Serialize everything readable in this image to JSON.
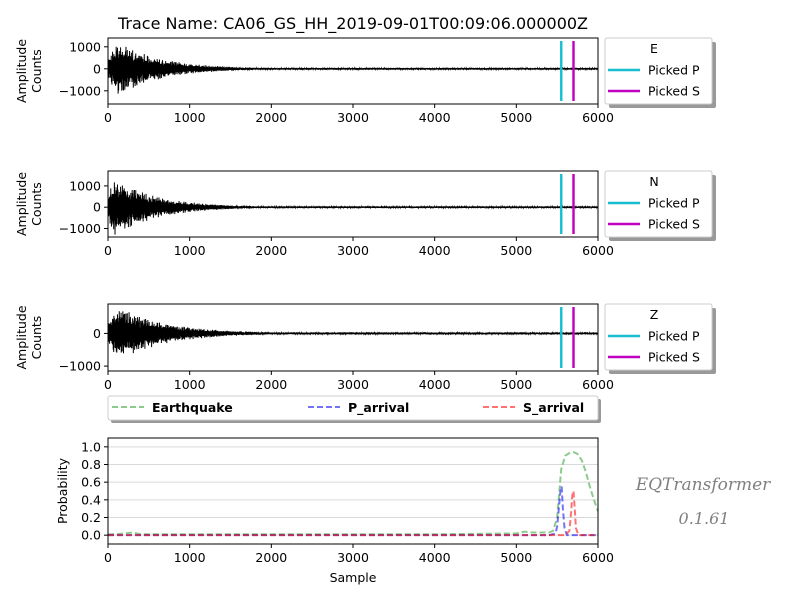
{
  "chart_data": [
    {
      "type": "line",
      "title": "Trace Name: CA06_GS_HH_2019-09-01T00:09:06.000000Z",
      "ylabel": [
        "Amplitude",
        "Counts"
      ],
      "xlim": [
        0,
        6000
      ],
      "ylim": [
        -1600,
        1400
      ],
      "xticks": [
        0,
        1000,
        2000,
        3000,
        4000,
        5000,
        6000
      ],
      "xtick_labels": [
        "0",
        "1000",
        "2000",
        "3000",
        "4000",
        "5000",
        "6000"
      ],
      "yticks": [
        -1000,
        0,
        1000
      ],
      "ytick_labels": [
        "−1000",
        "0",
        "1000"
      ],
      "legend_placement": "outside right",
      "legend_title": "E",
      "series": [
        {
          "name": "waveform",
          "color": "#000000",
          "peak": 1250,
          "peak_at": 120,
          "decay_per_sample": 0.0019,
          "floor": 45
        },
        {
          "name": "Picked P",
          "color": "#17becf",
          "x": 5550
        },
        {
          "name": "Picked S",
          "color": "#bf00bf",
          "x": 5700
        }
      ]
    },
    {
      "type": "line",
      "ylabel": [
        "Amplitude",
        "Counts"
      ],
      "xlim": [
        0,
        6000
      ],
      "ylim": [
        -1400,
        1700
      ],
      "xticks": [
        0,
        1000,
        2000,
        3000,
        4000,
        5000,
        6000
      ],
      "xtick_labels": [
        "0",
        "1000",
        "2000",
        "3000",
        "4000",
        "5000",
        "6000"
      ],
      "yticks": [
        -1000,
        0,
        1000
      ],
      "ytick_labels": [
        "−1000",
        "0",
        "1000"
      ],
      "legend_placement": "outside right",
      "legend_title": "N",
      "series": [
        {
          "name": "waveform",
          "color": "#000000",
          "peak": 1400,
          "peak_at": 70,
          "decay_per_sample": 0.0019,
          "floor": 45
        },
        {
          "name": "Picked P",
          "color": "#17becf",
          "x": 5550
        },
        {
          "name": "Picked S",
          "color": "#bf00bf",
          "x": 5700
        }
      ]
    },
    {
      "type": "line",
      "ylabel": [
        "Amplitude",
        "Counts"
      ],
      "xlim": [
        0,
        6000
      ],
      "ylim": [
        -1150,
        900
      ],
      "xticks": [
        0,
        1000,
        2000,
        3000,
        4000,
        5000,
        6000
      ],
      "xtick_labels": [
        "0",
        "1000",
        "2000",
        "3000",
        "4000",
        "5000",
        "6000"
      ],
      "yticks": [
        -1000,
        0
      ],
      "ytick_labels": [
        "−1000",
        "0"
      ],
      "legend_placement": "outside right",
      "legend_title": "Z",
      "series": [
        {
          "name": "waveform",
          "color": "#000000",
          "peak": 850,
          "peak_at": 120,
          "decay_per_sample": 0.0017,
          "floor": 35
        },
        {
          "name": "Picked P",
          "color": "#17becf",
          "x": 5550
        },
        {
          "name": "Picked S",
          "color": "#bf00bf",
          "x": 5700
        }
      ]
    },
    {
      "type": "line",
      "xlabel": "Sample",
      "ylabel": "Probability",
      "xlim": [
        0,
        6000
      ],
      "ylim": [
        -0.1,
        1.1
      ],
      "grid": "horizontal",
      "xticks": [
        0,
        1000,
        2000,
        3000,
        4000,
        5000,
        6000
      ],
      "xtick_labels": [
        "0",
        "1000",
        "2000",
        "3000",
        "4000",
        "5000",
        "6000"
      ],
      "yticks": [
        0.0,
        0.2,
        0.4,
        0.6,
        0.8,
        1.0
      ],
      "ytick_labels": [
        "0.0",
        "0.2",
        "0.4",
        "0.6",
        "0.8",
        "1.0"
      ],
      "legend_placement": "top",
      "series": [
        {
          "name": "Earthquake",
          "color": "#2ca02c",
          "dash": "dashed",
          "x": [
            0,
            100,
            300,
            400,
            600,
            1000,
            2000,
            3000,
            4000,
            5000,
            5100,
            5200,
            5300,
            5400,
            5450,
            5500,
            5550,
            5600,
            5650,
            5700,
            5750,
            5800,
            5850,
            5900,
            5950,
            6000
          ],
          "y": [
            0.01,
            0.01,
            0.03,
            0.01,
            0.01,
            0.01,
            0.01,
            0.01,
            0.01,
            0.02,
            0.04,
            0.03,
            0.03,
            0.03,
            0.05,
            0.2,
            0.75,
            0.9,
            0.93,
            0.94,
            0.92,
            0.85,
            0.72,
            0.55,
            0.4,
            0.27
          ]
        },
        {
          "name": "P_arrival",
          "color": "#0000ee",
          "dash": "dashed",
          "x": [
            0,
            5400,
            5480,
            5500,
            5520,
            5540,
            5555,
            5570,
            5590,
            5620,
            6000
          ],
          "y": [
            0.0,
            0.0,
            0.02,
            0.1,
            0.3,
            0.5,
            0.55,
            0.3,
            0.08,
            0.0,
            0.0
          ]
        },
        {
          "name": "S_arrival",
          "color": "#ff0000",
          "dash": "dashed",
          "x": [
            0,
            5600,
            5650,
            5670,
            5685,
            5700,
            5715,
            5730,
            5760,
            6000
          ],
          "y": [
            0.0,
            0.0,
            0.05,
            0.25,
            0.45,
            0.5,
            0.3,
            0.08,
            0.0,
            0.0
          ]
        }
      ]
    }
  ],
  "watermark": {
    "name": "EQTransformer",
    "version": "0.1.61",
    "color": "#808080"
  }
}
